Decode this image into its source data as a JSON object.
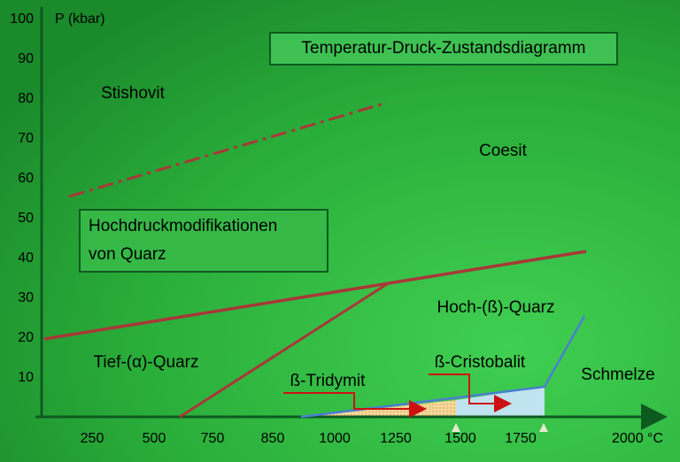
{
  "title": "Temperatur-Druck-Zustandsdiagramm",
  "y_axis": {
    "label": "P (kbar)",
    "ticks": [
      100,
      90,
      80,
      70,
      60,
      50,
      40,
      30,
      20,
      10
    ]
  },
  "x_axis": {
    "ticks": [
      "250",
      "500",
      "750",
      "850",
      "1000",
      "1250",
      "1500",
      "1750",
      "2000 °C"
    ]
  },
  "phases": {
    "stishovit": "Stishovit",
    "coesit": "Coesit",
    "hoch_quarz": "Hoch-(ß)-Quarz",
    "tief_quarz": "Tief-(α)-Quarz",
    "tridymit": "ß-Tridymit",
    "cristobalit": "ß-Cristobalit",
    "schmelze": "Schmelze"
  },
  "box": {
    "lines": [
      "Hochdruckmodifikationen",
      "von Quarz"
    ]
  }
}
